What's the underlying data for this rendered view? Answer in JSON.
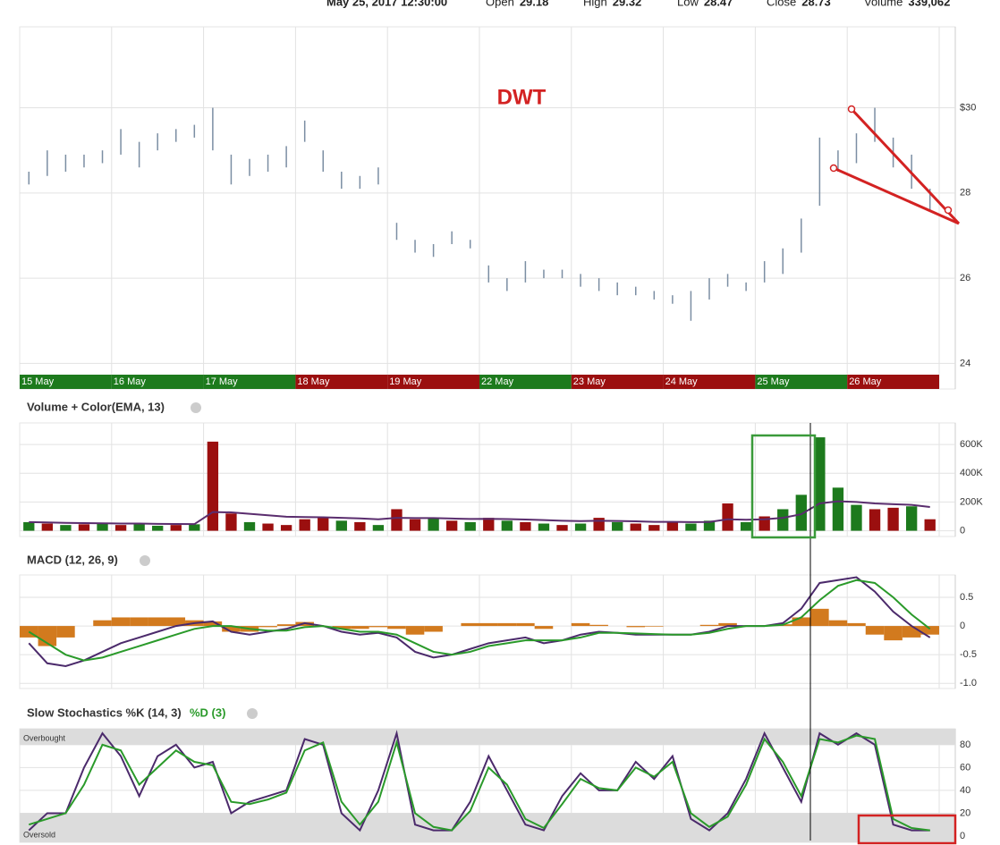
{
  "header": {
    "datetime": "May 25, 2017 12:30:00",
    "items": [
      {
        "label": "Open",
        "value": "29.18"
      },
      {
        "label": "High",
        "value": "29.32"
      },
      {
        "label": "Low",
        "value": "28.47"
      },
      {
        "label": "Close",
        "value": "28.73"
      },
      {
        "label": "Volume",
        "value": "339,062"
      }
    ]
  },
  "chart_data": [
    {
      "type": "ohlc",
      "title": "DWT",
      "color": "#7b8ea3",
      "categories": [
        "15 May",
        "16 May",
        "17 May",
        "18 May",
        "19 May",
        "22 May",
        "23 May",
        "24 May",
        "25 May",
        "26 May"
      ],
      "category_colors": [
        "#1d7a1d",
        "#1d7a1d",
        "#1d7a1d",
        "#9b0f0f",
        "#9b0f0f",
        "#1d7a1d",
        "#9b0f0f",
        "#9b0f0f",
        "#1d7a1d",
        "#9b0f0f"
      ],
      "high": [
        28.5,
        29.0,
        28.9,
        28.9,
        29.0,
        29.5,
        29.2,
        29.4,
        29.5,
        29.6,
        30.0,
        28.9,
        28.8,
        28.9,
        29.1,
        29.7,
        29.0,
        28.5,
        28.4,
        28.6,
        27.3,
        26.9,
        26.8,
        27.1,
        26.9,
        26.3,
        26.0,
        26.4,
        26.2,
        26.2,
        26.1,
        26.0,
        25.9,
        25.8,
        25.7,
        25.6,
        25.7,
        26.0,
        26.1,
        25.9,
        26.4,
        26.7,
        27.4,
        29.3,
        29.0,
        29.4,
        30.0,
        29.3,
        28.9,
        28.1
      ],
      "low": [
        28.2,
        28.4,
        28.5,
        28.6,
        28.7,
        28.9,
        28.6,
        29.0,
        29.2,
        29.3,
        29.0,
        28.2,
        28.4,
        28.5,
        28.6,
        29.2,
        28.5,
        28.1,
        28.1,
        28.2,
        26.9,
        26.6,
        26.5,
        26.8,
        26.7,
        25.9,
        25.7,
        25.9,
        26.0,
        26.0,
        25.8,
        25.7,
        25.6,
        25.6,
        25.5,
        25.4,
        25.0,
        25.5,
        25.8,
        25.7,
        25.9,
        26.1,
        26.6,
        27.7,
        28.5,
        28.7,
        29.2,
        28.6,
        28.1,
        27.6
      ],
      "ylim": [
        23.4,
        31.9
      ],
      "yticks": [
        {
          "value": 30,
          "label": "$30"
        },
        28,
        26,
        24
      ],
      "grid": true
    },
    {
      "type": "volume",
      "title": "Volume + Color(EMA, 13)",
      "line_color": "#5a2d6e",
      "values": [
        60000,
        50000,
        40000,
        45000,
        50000,
        40000,
        50000,
        35000,
        40000,
        45000,
        620000,
        120000,
        60000,
        50000,
        40000,
        80000,
        90000,
        70000,
        60000,
        40000,
        150000,
        80000,
        90000,
        70000,
        60000,
        90000,
        70000,
        60000,
        50000,
        40000,
        50000,
        90000,
        60000,
        50000,
        40000,
        60000,
        50000,
        70000,
        190000,
        60000,
        100000,
        150000,
        250000,
        650000,
        300000,
        180000,
        150000,
        160000,
        170000,
        80000
      ],
      "colors": [
        "#1d7a1d",
        "#9b0f0f",
        "#1d7a1d",
        "#9b0f0f",
        "#1d7a1d",
        "#9b0f0f",
        "#1d7a1d",
        "#1d7a1d",
        "#9b0f0f",
        "#1d7a1d",
        "#9b0f0f",
        "#9b0f0f",
        "#1d7a1d",
        "#9b0f0f",
        "#9b0f0f",
        "#9b0f0f",
        "#9b0f0f",
        "#1d7a1d",
        "#9b0f0f",
        "#1d7a1d",
        "#9b0f0f",
        "#9b0f0f",
        "#1d7a1d",
        "#9b0f0f",
        "#1d7a1d",
        "#9b0f0f",
        "#1d7a1d",
        "#9b0f0f",
        "#1d7a1d",
        "#9b0f0f",
        "#1d7a1d",
        "#9b0f0f",
        "#1d7a1d",
        "#9b0f0f",
        "#9b0f0f",
        "#9b0f0f",
        "#1d7a1d",
        "#1d7a1d",
        "#9b0f0f",
        "#1d7a1d",
        "#9b0f0f",
        "#1d7a1d",
        "#1d7a1d",
        "#1d7a1d",
        "#1d7a1d",
        "#1d7a1d",
        "#9b0f0f",
        "#9b0f0f",
        "#1d7a1d",
        "#9b0f0f"
      ],
      "ema_values": [
        60000,
        58000,
        55000,
        53000,
        52000,
        50000,
        50000,
        48000,
        47000,
        46000,
        130000,
        128000,
        118000,
        108000,
        98000,
        95000,
        94000,
        90000,
        86000,
        80000,
        90000,
        88000,
        88000,
        85000,
        82000,
        83000,
        81000,
        78000,
        74000,
        70000,
        67000,
        70000,
        68000,
        66000,
        62000,
        62000,
        60000,
        61000,
        80000,
        77000,
        80000,
        90000,
        115000,
        190000,
        205000,
        200000,
        190000,
        185000,
        180000,
        165000
      ],
      "ylim": [
        -40000,
        750000
      ],
      "yticks": [
        0,
        {
          "value": 200000,
          "label": "200K"
        },
        {
          "value": 400000,
          "label": "400K"
        },
        {
          "value": 600000,
          "label": "600K"
        }
      ],
      "grid": true
    },
    {
      "type": "macd",
      "title": "MACD (12, 26, 9)",
      "series": [
        {
          "color": "#4b2a6b",
          "values": [
            -0.3,
            -0.65,
            -0.7,
            -0.6,
            -0.45,
            -0.3,
            -0.2,
            -0.1,
            0.0,
            0.05,
            0.08,
            -0.1,
            -0.15,
            -0.1,
            -0.05,
            0.05,
            0.0,
            -0.1,
            -0.15,
            -0.12,
            -0.2,
            -0.45,
            -0.55,
            -0.5,
            -0.4,
            -0.3,
            -0.25,
            -0.2,
            -0.3,
            -0.25,
            -0.15,
            -0.1,
            -0.12,
            -0.15,
            -0.15,
            -0.15,
            -0.15,
            -0.1,
            0.0,
            0.0,
            0.0,
            0.05,
            0.3,
            0.75,
            0.8,
            0.85,
            0.6,
            0.25,
            0.0,
            -0.2
          ]
        },
        {
          "color": "#2a9a2a",
          "values": [
            -0.1,
            -0.3,
            -0.5,
            -0.6,
            -0.55,
            -0.45,
            -0.35,
            -0.25,
            -0.15,
            -0.05,
            0.0,
            0.0,
            -0.05,
            -0.08,
            -0.08,
            -0.02,
            0.0,
            -0.05,
            -0.1,
            -0.1,
            -0.15,
            -0.3,
            -0.45,
            -0.5,
            -0.45,
            -0.35,
            -0.3,
            -0.25,
            -0.25,
            -0.25,
            -0.2,
            -0.12,
            -0.12,
            -0.13,
            -0.14,
            -0.15,
            -0.15,
            -0.12,
            -0.05,
            0.0,
            0.0,
            0.02,
            0.15,
            0.45,
            0.7,
            0.8,
            0.75,
            0.5,
            0.2,
            -0.05
          ]
        }
      ],
      "histogram": {
        "color": "#d27a1e",
        "values": [
          -0.2,
          -0.35,
          -0.2,
          0.0,
          0.1,
          0.15,
          0.15,
          0.15,
          0.15,
          0.1,
          0.08,
          -0.1,
          -0.1,
          -0.02,
          0.03,
          0.07,
          0.0,
          -0.05,
          -0.05,
          -0.02,
          -0.05,
          -0.15,
          -0.1,
          0.0,
          0.05,
          0.05,
          0.05,
          0.05,
          -0.05,
          0.0,
          0.05,
          0.02,
          0.0,
          -0.02,
          -0.01,
          0.0,
          0.0,
          0.02,
          0.05,
          0.0,
          0.0,
          0.03,
          0.15,
          0.3,
          0.1,
          0.05,
          -0.15,
          -0.25,
          -0.2,
          -0.15
        ]
      },
      "ylim": [
        -1.09,
        0.89
      ],
      "yticks": [
        0.5,
        0,
        -0.5,
        {
          "value": -1,
          "label": "-1.0"
        }
      ],
      "grid": true
    },
    {
      "type": "stochastic",
      "title": "Slow Stochastics %K (14, 3)",
      "title_d": "%D (3)",
      "series": [
        {
          "color": "#4b2a6b",
          "values": [
            5,
            20,
            20,
            60,
            90,
            70,
            35,
            70,
            80,
            60,
            65,
            20,
            30,
            35,
            40,
            85,
            80,
            20,
            5,
            40,
            90,
            10,
            5,
            5,
            30,
            70,
            40,
            10,
            5,
            35,
            55,
            40,
            40,
            65,
            50,
            70,
            15,
            5,
            20,
            50,
            90,
            60,
            30,
            90,
            80,
            90,
            80,
            10,
            5,
            5
          ]
        },
        {
          "color": "#2a9a2a",
          "values": [
            10,
            15,
            20,
            45,
            80,
            75,
            45,
            60,
            75,
            65,
            62,
            30,
            28,
            32,
            38,
            75,
            82,
            30,
            10,
            30,
            82,
            20,
            8,
            5,
            22,
            60,
            45,
            15,
            7,
            28,
            50,
            42,
            40,
            60,
            52,
            65,
            20,
            8,
            17,
            45,
            85,
            65,
            35,
            85,
            82,
            88,
            85,
            15,
            7,
            5
          ]
        }
      ],
      "bands": [
        {
          "label": "Overbought",
          "from": 80
        },
        {
          "label": "Oversold",
          "to": 20
        }
      ],
      "ylim": [
        -5.5,
        94
      ],
      "yticks": [
        0,
        20,
        40,
        60,
        80
      ],
      "grid": true
    }
  ]
}
